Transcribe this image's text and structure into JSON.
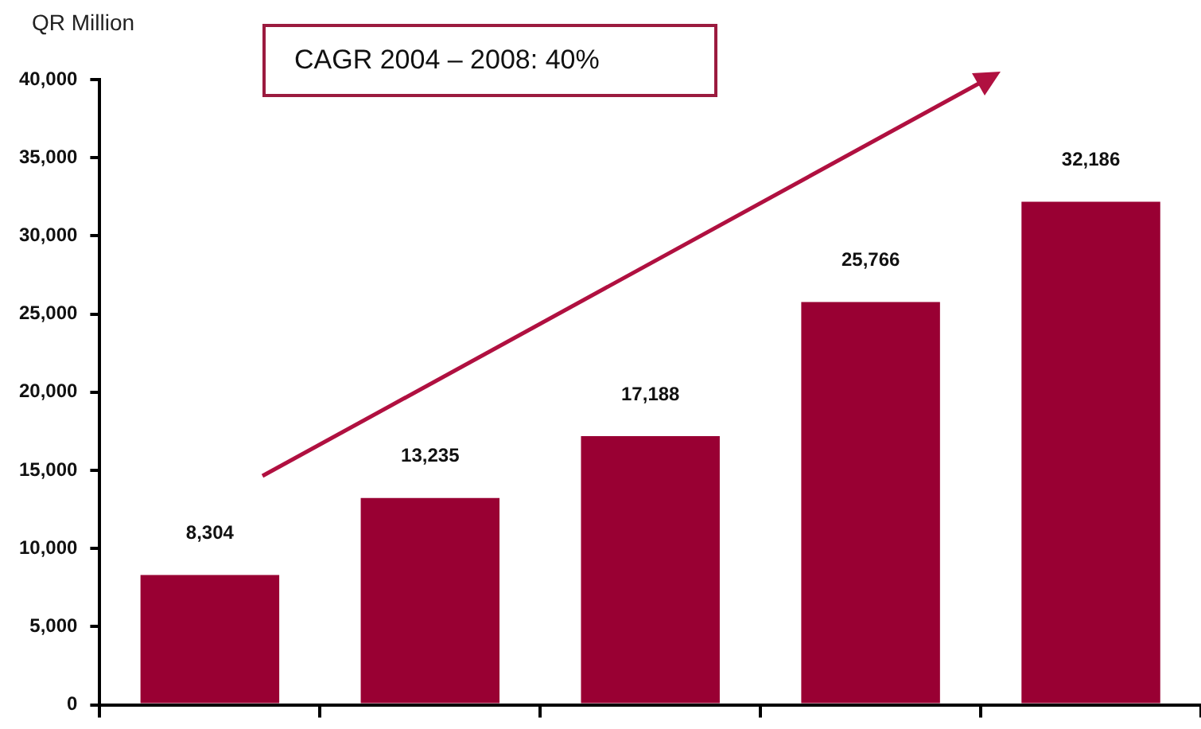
{
  "chart_data": {
    "type": "bar",
    "ylabel": "QR Million",
    "annotations": [
      "CAGR 2004 – 2008: 40%"
    ],
    "categories": [
      null,
      null,
      null,
      null,
      null
    ],
    "values": [
      8304,
      13235,
      17188,
      25766,
      32186
    ],
    "value_labels": [
      "8,304",
      "13,235",
      "17,188",
      "25,766",
      "32,186"
    ],
    "color": "#990033",
    "ylim": [
      0,
      40000
    ],
    "yticks": [
      0,
      {
        "value": 5000,
        "label": "5,000"
      },
      {
        "value": 10000,
        "label": "10,000"
      },
      {
        "value": 15000,
        "label": "15,000"
      },
      {
        "value": 20000,
        "label": "20,000"
      },
      {
        "value": 25000,
        "label": "25,000"
      },
      {
        "value": 30000,
        "label": "30,000"
      },
      {
        "value": 35000,
        "label": "35,000"
      },
      {
        "value": 40000,
        "label": "40,000"
      }
    ],
    "grid": false,
    "legend": false
  }
}
